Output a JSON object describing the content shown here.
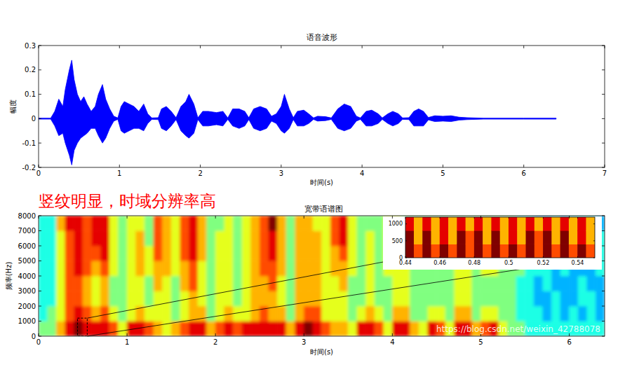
{
  "chart_data": [
    {
      "type": "area",
      "title": "语音波形",
      "x_label": "时间(s)",
      "y_label": "幅度",
      "xlim": [
        0,
        7
      ],
      "xticks": [
        0,
        1,
        2,
        3,
        4,
        5,
        6,
        7
      ],
      "ylim": [
        -0.2,
        0.3
      ],
      "yticks": [
        -0.2,
        -0.1,
        0,
        0.1,
        0.2,
        0.3
      ],
      "x": [
        0,
        0.15,
        0.2,
        0.25,
        0.3,
        0.33,
        0.38,
        0.41,
        0.44,
        0.48,
        0.52,
        0.56,
        0.6,
        0.65,
        0.7,
        0.74,
        0.79,
        0.83,
        0.88,
        0.93,
        0.98,
        1.02,
        1.06,
        1.12,
        1.18,
        1.24,
        1.3,
        1.35,
        1.4,
        1.48,
        1.52,
        1.58,
        1.64,
        1.7,
        1.76,
        1.82,
        1.86,
        1.92,
        1.97,
        2.03,
        2.1,
        2.2,
        2.28,
        2.34,
        2.4,
        2.48,
        2.55,
        2.6,
        2.66,
        2.74,
        2.82,
        2.88,
        2.94,
        3.0,
        3.04,
        3.1,
        3.15,
        3.2,
        3.28,
        3.34,
        3.4,
        3.45,
        3.55,
        3.62,
        3.7,
        3.78,
        3.86,
        3.93,
        3.98,
        4.05,
        4.12,
        4.2,
        4.25,
        4.32,
        4.38,
        4.45,
        4.5,
        4.58,
        4.64,
        4.7,
        4.76,
        4.82,
        4.9,
        5.0,
        5.1,
        5.2,
        5.3,
        5.5,
        6.0,
        6.4
      ],
      "series": [
        {
          "color": "#0000ff",
          "values": [
            0.002,
            0.002,
            0.03,
            0.08,
            0.05,
            0.12,
            0.2,
            0.24,
            0.16,
            0.1,
            0.07,
            0.09,
            0.06,
            0.03,
            0.05,
            0.1,
            0.14,
            0.08,
            0.04,
            0.01,
            0.003,
            0.05,
            0.07,
            0.06,
            0.05,
            0.03,
            0.06,
            0.02,
            0.003,
            0.004,
            0.04,
            0.05,
            0.03,
            0.004,
            0.05,
            0.07,
            0.1,
            0.06,
            0.004,
            0.03,
            0.03,
            0.025,
            0.03,
            0.003,
            0.04,
            0.04,
            0.03,
            0.004,
            0.04,
            0.05,
            0.04,
            0.01,
            0.02,
            0.05,
            0.1,
            0.04,
            0.004,
            0.03,
            0.035,
            0.02,
            0.003,
            0.01,
            0.008,
            0.003,
            0.04,
            0.06,
            0.05,
            0.01,
            0.003,
            0.03,
            0.035,
            0.02,
            0.003,
            0.02,
            0.03,
            0.02,
            0.003,
            0.004,
            0.03,
            0.04,
            0.03,
            0.005,
            0.012,
            0.01,
            0.012,
            0.006,
            0.004,
            0.002,
            0.002,
            0.002
          ]
        },
        {
          "color": "#0000ff",
          "values": [
            -0.002,
            -0.002,
            -0.03,
            -0.07,
            -0.06,
            -0.1,
            -0.15,
            -0.19,
            -0.13,
            -0.1,
            -0.08,
            -0.07,
            -0.06,
            -0.04,
            -0.04,
            -0.07,
            -0.1,
            -0.08,
            -0.04,
            -0.01,
            -0.003,
            -0.05,
            -0.06,
            -0.05,
            -0.04,
            -0.04,
            -0.05,
            -0.02,
            -0.003,
            -0.004,
            -0.04,
            -0.05,
            -0.03,
            -0.004,
            -0.05,
            -0.07,
            -0.08,
            -0.06,
            -0.004,
            -0.03,
            -0.03,
            -0.025,
            -0.03,
            -0.003,
            -0.03,
            -0.04,
            -0.03,
            -0.004,
            -0.04,
            -0.05,
            -0.04,
            -0.01,
            -0.02,
            -0.05,
            -0.06,
            -0.04,
            -0.004,
            -0.03,
            -0.03,
            -0.02,
            -0.003,
            -0.01,
            -0.008,
            -0.003,
            -0.04,
            -0.05,
            -0.04,
            -0.01,
            -0.003,
            -0.03,
            -0.03,
            -0.02,
            -0.003,
            -0.02,
            -0.03,
            -0.02,
            -0.003,
            -0.004,
            -0.03,
            -0.03,
            -0.03,
            -0.005,
            -0.012,
            -0.01,
            -0.012,
            -0.006,
            -0.004,
            -0.002,
            -0.002,
            -0.002
          ]
        }
      ]
    },
    {
      "type": "heatmap",
      "title": "宽带语谱图",
      "x_label": "时间(s)",
      "y_label": "频率(Hz)",
      "xlim": [
        0,
        6.4
      ],
      "xticks": [
        0,
        1,
        2,
        3,
        4,
        5,
        6
      ],
      "ylim": [
        0,
        8000
      ],
      "yticks": [
        0,
        1000,
        2000,
        3000,
        4000,
        5000,
        6000,
        7000,
        8000
      ],
      "zlim": [
        0,
        10
      ],
      "x": [
        0,
        0.1,
        0.2,
        0.3,
        0.4,
        0.5,
        0.6,
        0.7,
        0.8,
        0.9,
        1.0,
        1.1,
        1.2,
        1.3,
        1.4,
        1.5,
        1.6,
        1.7,
        1.8,
        1.9,
        2.0,
        2.1,
        2.2,
        2.3,
        2.4,
        2.5,
        2.6,
        2.7,
        2.8,
        2.9,
        3.0,
        3.1,
        3.2,
        3.3,
        3.4,
        3.5,
        3.6,
        3.7,
        3.8,
        3.9,
        4.0,
        4.1,
        4.2,
        4.3,
        4.4,
        4.5,
        4.6,
        4.7,
        4.8,
        4.9,
        5.0,
        5.1,
        5.2,
        5.3,
        5.4,
        5.5,
        5.6,
        5.7,
        5.8,
        5.9,
        6.0,
        6.1,
        6.2,
        6.3
      ],
      "y": [
        0,
        1000,
        2000,
        3000,
        4000,
        5000,
        6000,
        7000
      ],
      "cells": [
        [
          5,
          4,
          4,
          4,
          4,
          4,
          4,
          4
        ],
        [
          5,
          5,
          4,
          4,
          4,
          4,
          4,
          4
        ],
        [
          7,
          6,
          6,
          6,
          6,
          6,
          6,
          7
        ],
        [
          9,
          8,
          8,
          8,
          8,
          8,
          8,
          9
        ],
        [
          10,
          9,
          8,
          8,
          9,
          9,
          9,
          9
        ],
        [
          9,
          8,
          7,
          7,
          8,
          8,
          8,
          8
        ],
        [
          9,
          7,
          6,
          6,
          7,
          8,
          9,
          9
        ],
        [
          9,
          8,
          7,
          7,
          8,
          9,
          9,
          9
        ],
        [
          8,
          6,
          5,
          5,
          6,
          6,
          6,
          6
        ],
        [
          6,
          5,
          5,
          5,
          5,
          5,
          5,
          5
        ],
        [
          9,
          6,
          6,
          6,
          6,
          6,
          6,
          6
        ],
        [
          9,
          7,
          6,
          6,
          7,
          7,
          7,
          6
        ],
        [
          8,
          6,
          5,
          5,
          6,
          6,
          5,
          5
        ],
        [
          7,
          6,
          6,
          7,
          7,
          8,
          8,
          8
        ],
        [
          6,
          6,
          6,
          6,
          7,
          7,
          7,
          7
        ],
        [
          7,
          5,
          5,
          5,
          6,
          6,
          6,
          6
        ],
        [
          8,
          6,
          6,
          7,
          7,
          8,
          8,
          8
        ],
        [
          9,
          7,
          7,
          8,
          8,
          9,
          9,
          9
        ],
        [
          9,
          7,
          6,
          6,
          6,
          7,
          7,
          7
        ],
        [
          7,
          5,
          5,
          5,
          5,
          5,
          5,
          5
        ],
        [
          8,
          6,
          6,
          6,
          6,
          6,
          6,
          5
        ],
        [
          9,
          7,
          6,
          6,
          6,
          6,
          6,
          6
        ],
        [
          8,
          6,
          5,
          5,
          5,
          5,
          5,
          5
        ],
        [
          9,
          6,
          6,
          6,
          6,
          6,
          6,
          6
        ],
        [
          9,
          7,
          7,
          7,
          7,
          7,
          7,
          7
        ],
        [
          9,
          8,
          7,
          7,
          8,
          8,
          8,
          8
        ],
        [
          9,
          7,
          7,
          8,
          8,
          9,
          9,
          10
        ],
        [
          9,
          7,
          6,
          6,
          7,
          7,
          7,
          7
        ],
        [
          7,
          5,
          5,
          5,
          5,
          5,
          5,
          5
        ],
        [
          9,
          7,
          7,
          7,
          7,
          7,
          7,
          7
        ],
        [
          10,
          8,
          7,
          7,
          7,
          7,
          7,
          7
        ],
        [
          9,
          8,
          7,
          7,
          7,
          7,
          7,
          6
        ],
        [
          8,
          6,
          6,
          6,
          6,
          6,
          6,
          6
        ],
        [
          7,
          6,
          6,
          6,
          7,
          7,
          8,
          8
        ],
        [
          7,
          6,
          6,
          7,
          7,
          8,
          9,
          9
        ],
        [
          6,
          5,
          5,
          5,
          6,
          6,
          6,
          6
        ],
        [
          9,
          6,
          5,
          5,
          5,
          5,
          5,
          5
        ],
        [
          9,
          7,
          6,
          6,
          6,
          6,
          6,
          5
        ],
        [
          8,
          6,
          5,
          5,
          5,
          5,
          5,
          5
        ],
        [
          6,
          5,
          5,
          5,
          6,
          6,
          6,
          6
        ],
        [
          9,
          7,
          6,
          6,
          6,
          6,
          6,
          6
        ],
        [
          9,
          7,
          6,
          6,
          6,
          6,
          6,
          5
        ],
        [
          7,
          5,
          5,
          5,
          5,
          5,
          5,
          5
        ],
        [
          6,
          5,
          5,
          5,
          5,
          5,
          5,
          5
        ],
        [
          9,
          6,
          5,
          5,
          5,
          5,
          5,
          5
        ],
        [
          8,
          6,
          5,
          5,
          5,
          6,
          6,
          5
        ],
        [
          6,
          5,
          5,
          5,
          5,
          5,
          5,
          5
        ],
        [
          9,
          7,
          6,
          6,
          6,
          6,
          6,
          5
        ],
        [
          9,
          7,
          6,
          6,
          6,
          6,
          6,
          5
        ],
        [
          7,
          5,
          5,
          5,
          5,
          5,
          5,
          5
        ],
        [
          8,
          6,
          5,
          5,
          6,
          6,
          5,
          5
        ],
        [
          9,
          6,
          5,
          5,
          6,
          6,
          6,
          5
        ],
        [
          6,
          5,
          5,
          5,
          5,
          5,
          5,
          5
        ],
        [
          5,
          5,
          5,
          5,
          5,
          5,
          5,
          5
        ],
        [
          5,
          4,
          4,
          4,
          5,
          5,
          5,
          4
        ],
        [
          4,
          4,
          4,
          4,
          4,
          4,
          4,
          4
        ],
        [
          4,
          4,
          3,
          3,
          4,
          4,
          4,
          3
        ],
        [
          4,
          3,
          3,
          4,
          4,
          4,
          3,
          3
        ],
        [
          4,
          4,
          4,
          3,
          3,
          4,
          4,
          4
        ],
        [
          4,
          3,
          3,
          3,
          4,
          4,
          3,
          3
        ],
        [
          4,
          4,
          3,
          3,
          3,
          4,
          4,
          4
        ],
        [
          4,
          3,
          4,
          4,
          3,
          3,
          4,
          4
        ],
        [
          4,
          4,
          4,
          3,
          3,
          3,
          3,
          4
        ],
        [
          4,
          3,
          3,
          3,
          4,
          4,
          4,
          3
        ]
      ],
      "inset": {
        "xlim": [
          0.44,
          0.55
        ],
        "xticks": [
          0.44,
          0.46,
          0.48,
          0.5,
          0.52,
          0.54
        ],
        "ylim": [
          0,
          1200
        ],
        "yticks": [
          0,
          500,
          1000
        ],
        "x": [
          0.44,
          0.445,
          0.45,
          0.455,
          0.46,
          0.465,
          0.47,
          0.475,
          0.48,
          0.485,
          0.49,
          0.495,
          0.5,
          0.505,
          0.51,
          0.515,
          0.52,
          0.525,
          0.53,
          0.535,
          0.54,
          0.545
        ],
        "y": [
          0,
          400,
          800
        ],
        "cells": [
          [
            10,
            10,
            9
          ],
          [
            8,
            7,
            7
          ],
          [
            10,
            10,
            9
          ],
          [
            8,
            7,
            7
          ],
          [
            10,
            9,
            9
          ],
          [
            8,
            7,
            7
          ],
          [
            10,
            10,
            9
          ],
          [
            8,
            8,
            7
          ],
          [
            10,
            10,
            9
          ],
          [
            8,
            7,
            7
          ],
          [
            10,
            10,
            9
          ],
          [
            8,
            7,
            7
          ],
          [
            10,
            9,
            9
          ],
          [
            8,
            7,
            7
          ],
          [
            10,
            10,
            9
          ],
          [
            8,
            8,
            7
          ],
          [
            10,
            10,
            9
          ],
          [
            8,
            7,
            7
          ],
          [
            10,
            10,
            9
          ],
          [
            8,
            7,
            7
          ],
          [
            10,
            9,
            9
          ],
          [
            8,
            7,
            7
          ]
        ]
      },
      "annotations": [
        {
          "text": "竖纹明显，时域分辨率高",
          "color": "#ff0000"
        },
        {
          "text": "https://blog.csdn.net/weixin_42788078",
          "color": "#ffffff"
        }
      ]
    }
  ]
}
